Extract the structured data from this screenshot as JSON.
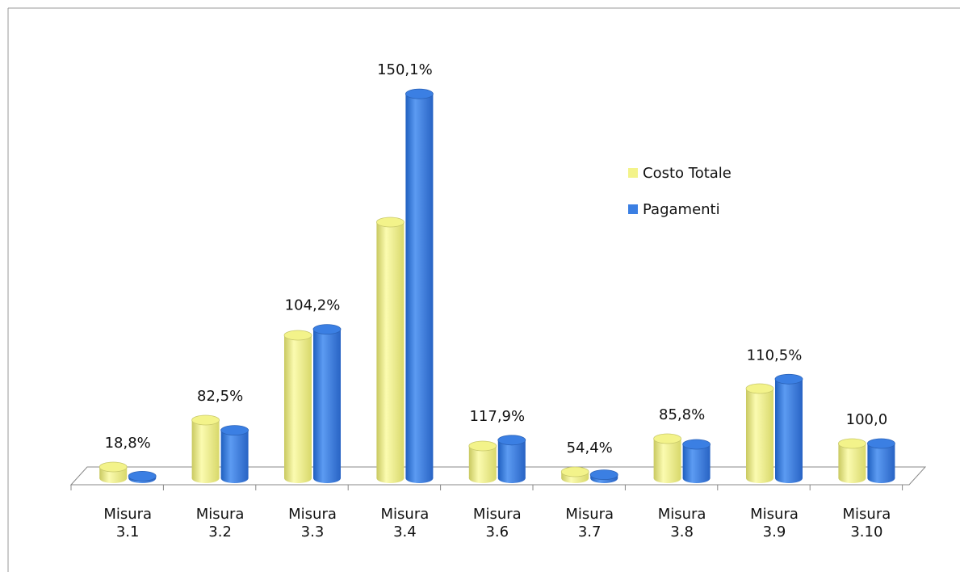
{
  "chart_data": {
    "type": "bar3d",
    "categories": [
      "Misura 3.1",
      "Misura 3.2",
      "Misura 3.3",
      "Misura 3.4",
      "Misura 3.6",
      "Misura 3.7",
      "Misura 3.8",
      "Misura 3.9",
      "Misura 3.10"
    ],
    "series": [
      {
        "name": "Costo Totale",
        "color": "#f3f38a",
        "values": [
          14,
          72,
          177,
          317,
          40,
          8,
          49,
          111,
          43
        ]
      },
      {
        "name": "Pagamenti",
        "color": "#3b7fe3",
        "values": [
          2.6,
          59.4,
          184.4,
          475.8,
          47.2,
          4.4,
          42,
          122.7,
          43
        ]
      }
    ],
    "annotations": [
      "18,8%",
      "82,5%",
      "104,2%",
      "150,1%",
      "117,9%",
      "54,4%",
      "85,8%",
      "110,5%",
      "100,0"
    ],
    "ylim": [
      0,
      500
    ],
    "legend": "right"
  }
}
